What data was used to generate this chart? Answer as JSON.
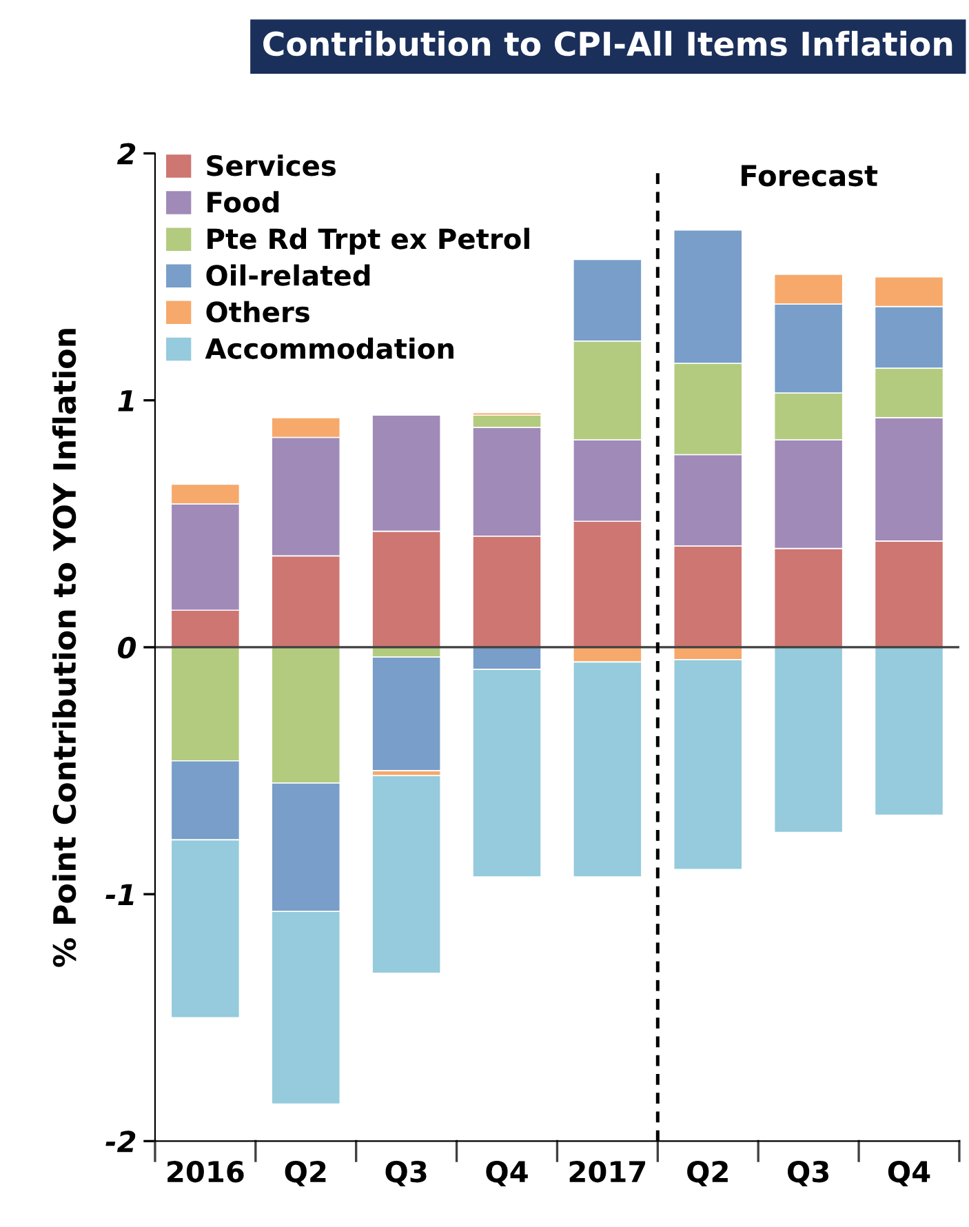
{
  "chart_data": {
    "type": "bar",
    "title": "Contribution to CPI-All Items Inflation",
    "ylabel": "% Point Contribution to YOY Inflation",
    "categories": [
      "2016",
      "Q2",
      "Q3",
      "Q4",
      "2017",
      "Q2",
      "Q3",
      "Q4"
    ],
    "stacked": true,
    "series": [
      {
        "name": "Services",
        "color": "#cd7672",
        "values": [
          0.15,
          0.37,
          0.47,
          0.45,
          0.51,
          0.41,
          0.4,
          0.43
        ]
      },
      {
        "name": "Food",
        "color": "#a08ab8",
        "values": [
          0.43,
          0.48,
          0.47,
          0.44,
          0.33,
          0.37,
          0.44,
          0.5
        ]
      },
      {
        "name": "Pte Rd Trpt ex Petrol",
        "color": "#b3cb7f",
        "values": [
          -0.46,
          -0.55,
          -0.04,
          0.05,
          0.4,
          0.37,
          0.19,
          0.2
        ]
      },
      {
        "name": "Oil-related",
        "color": "#789ec9",
        "values": [
          -0.32,
          -0.52,
          -0.46,
          -0.09,
          0.33,
          0.54,
          0.36,
          0.25
        ]
      },
      {
        "name": "Others",
        "color": "#f6a96b",
        "values": [
          0.08,
          0.08,
          -0.02,
          0.01,
          -0.06,
          -0.05,
          0.12,
          0.12
        ]
      },
      {
        "name": "Accommodation",
        "color": "#95cbdc",
        "values": [
          -0.72,
          -0.78,
          -0.8,
          -0.84,
          -0.87,
          -0.85,
          -0.75,
          -0.68
        ]
      }
    ],
    "ylim": [
      -2,
      2
    ],
    "yticks": [
      2,
      1,
      0,
      {
        "value": -1,
        "label": "-1"
      },
      {
        "value": -2,
        "label": "-2"
      }
    ],
    "ref_lines": [
      {
        "axis": "y",
        "value": 0,
        "color": "#404040",
        "line_style": "solid"
      }
    ],
    "annotations": [
      "Forecast"
    ],
    "legend": "top left",
    "grid": false
  }
}
